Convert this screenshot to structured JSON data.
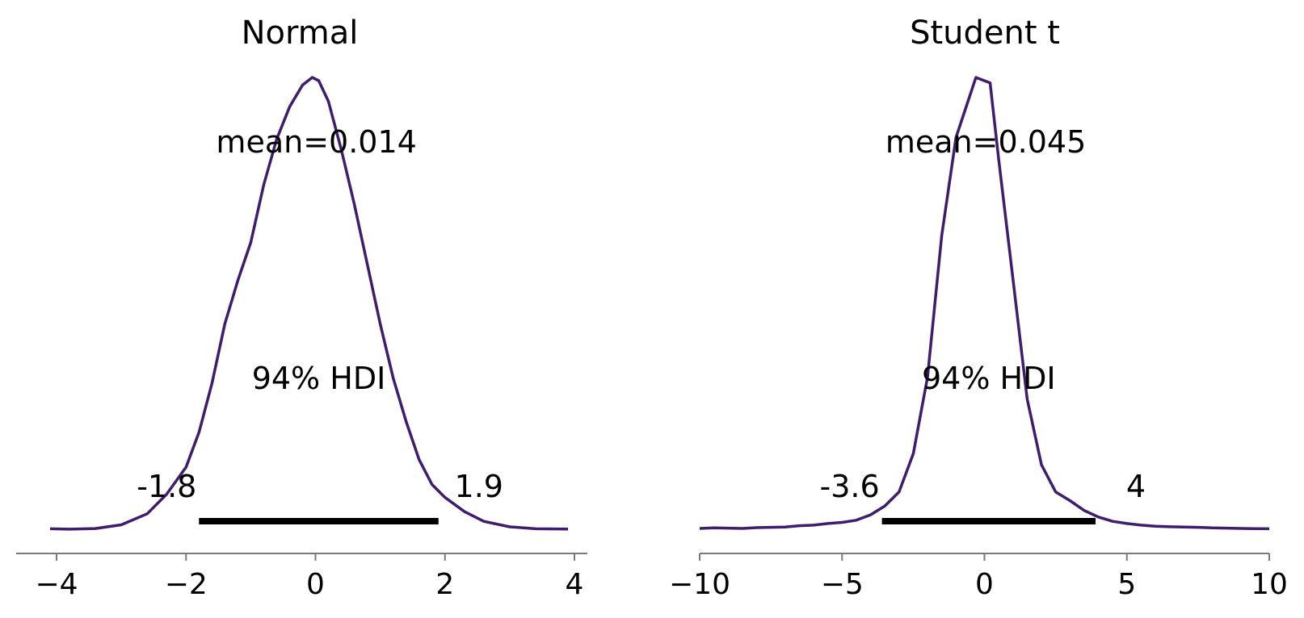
{
  "colors": {
    "density": "#3f1c6e",
    "hdi": "#000000",
    "axis": "#7a7a7a"
  },
  "chart_data": [
    {
      "type": "line",
      "title": "Normal",
      "xlabel": "",
      "ylabel": "",
      "xlim": [
        -4.1,
        3.95
      ],
      "ylim": [
        0,
        0.42
      ],
      "xticks": [
        -4,
        -2,
        0,
        2,
        4
      ],
      "xtick_labels": [
        "−4",
        "−2",
        "0",
        "2",
        "4"
      ],
      "grid": false,
      "x": [
        -4.1,
        -3.8,
        -3.4,
        -3.0,
        -2.6,
        -2.3,
        -2.0,
        -1.8,
        -1.6,
        -1.4,
        -1.2,
        -1.0,
        -0.8,
        -0.6,
        -0.4,
        -0.2,
        -0.05,
        0.05,
        0.2,
        0.4,
        0.6,
        0.8,
        1.0,
        1.2,
        1.4,
        1.6,
        1.8,
        2.0,
        2.3,
        2.6,
        3.0,
        3.4,
        3.9
      ],
      "y": [
        0.0012,
        0.0008,
        0.0014,
        0.0048,
        0.015,
        0.033,
        0.058,
        0.09,
        0.135,
        0.19,
        0.23,
        0.265,
        0.318,
        0.36,
        0.39,
        0.41,
        0.417,
        0.414,
        0.395,
        0.35,
        0.3,
        0.245,
        0.19,
        0.14,
        0.1,
        0.065,
        0.042,
        0.03,
        0.017,
        0.008,
        0.003,
        0.0012,
        0.001
      ],
      "mean_label": "mean=0.014",
      "mean": 0.014,
      "hdi_label": "94% HDI",
      "hdi": [
        -1.8,
        1.9
      ],
      "hdi_low_label": "-1.8",
      "hdi_high_label": "1.9"
    },
    {
      "type": "line",
      "title": "Student t",
      "xlabel": "",
      "ylabel": "",
      "xlim": [
        -10,
        10
      ],
      "ylim": [
        0,
        0.42
      ],
      "xticks": [
        -10,
        -5,
        0,
        5,
        10
      ],
      "xtick_labels": [
        "−10",
        "−5",
        "0",
        "5",
        "10"
      ],
      "grid": false,
      "x": [
        -10,
        -9.5,
        -9,
        -8.5,
        -8,
        -7.5,
        -7,
        -6.5,
        -6,
        -5.5,
        -5,
        -4.5,
        -4,
        -3.5,
        -3,
        -2.5,
        -2,
        -1.5,
        -1,
        -0.3,
        0.2,
        0.5,
        1,
        1.5,
        2,
        2.5,
        3,
        3.5,
        4,
        4.5,
        5,
        5.5,
        6,
        6.5,
        7,
        7.5,
        8,
        8.5,
        9,
        9.5,
        10
      ],
      "y": [
        0.0015,
        0.002,
        0.0018,
        0.0015,
        0.0022,
        0.0025,
        0.0028,
        0.004,
        0.0045,
        0.006,
        0.007,
        0.009,
        0.014,
        0.022,
        0.035,
        0.07,
        0.14,
        0.27,
        0.36,
        0.415,
        0.41,
        0.34,
        0.23,
        0.12,
        0.06,
        0.035,
        0.027,
        0.018,
        0.012,
        0.008,
        0.006,
        0.0045,
        0.0035,
        0.003,
        0.0028,
        0.0025,
        0.002,
        0.0018,
        0.0015,
        0.0013,
        0.0012
      ],
      "mean_label": "mean=0.045",
      "mean": 0.045,
      "hdi_label": "94% HDI",
      "hdi": [
        -3.6,
        3.9
      ],
      "hdi_low_label": "-3.6",
      "hdi_high_label": "4"
    }
  ]
}
